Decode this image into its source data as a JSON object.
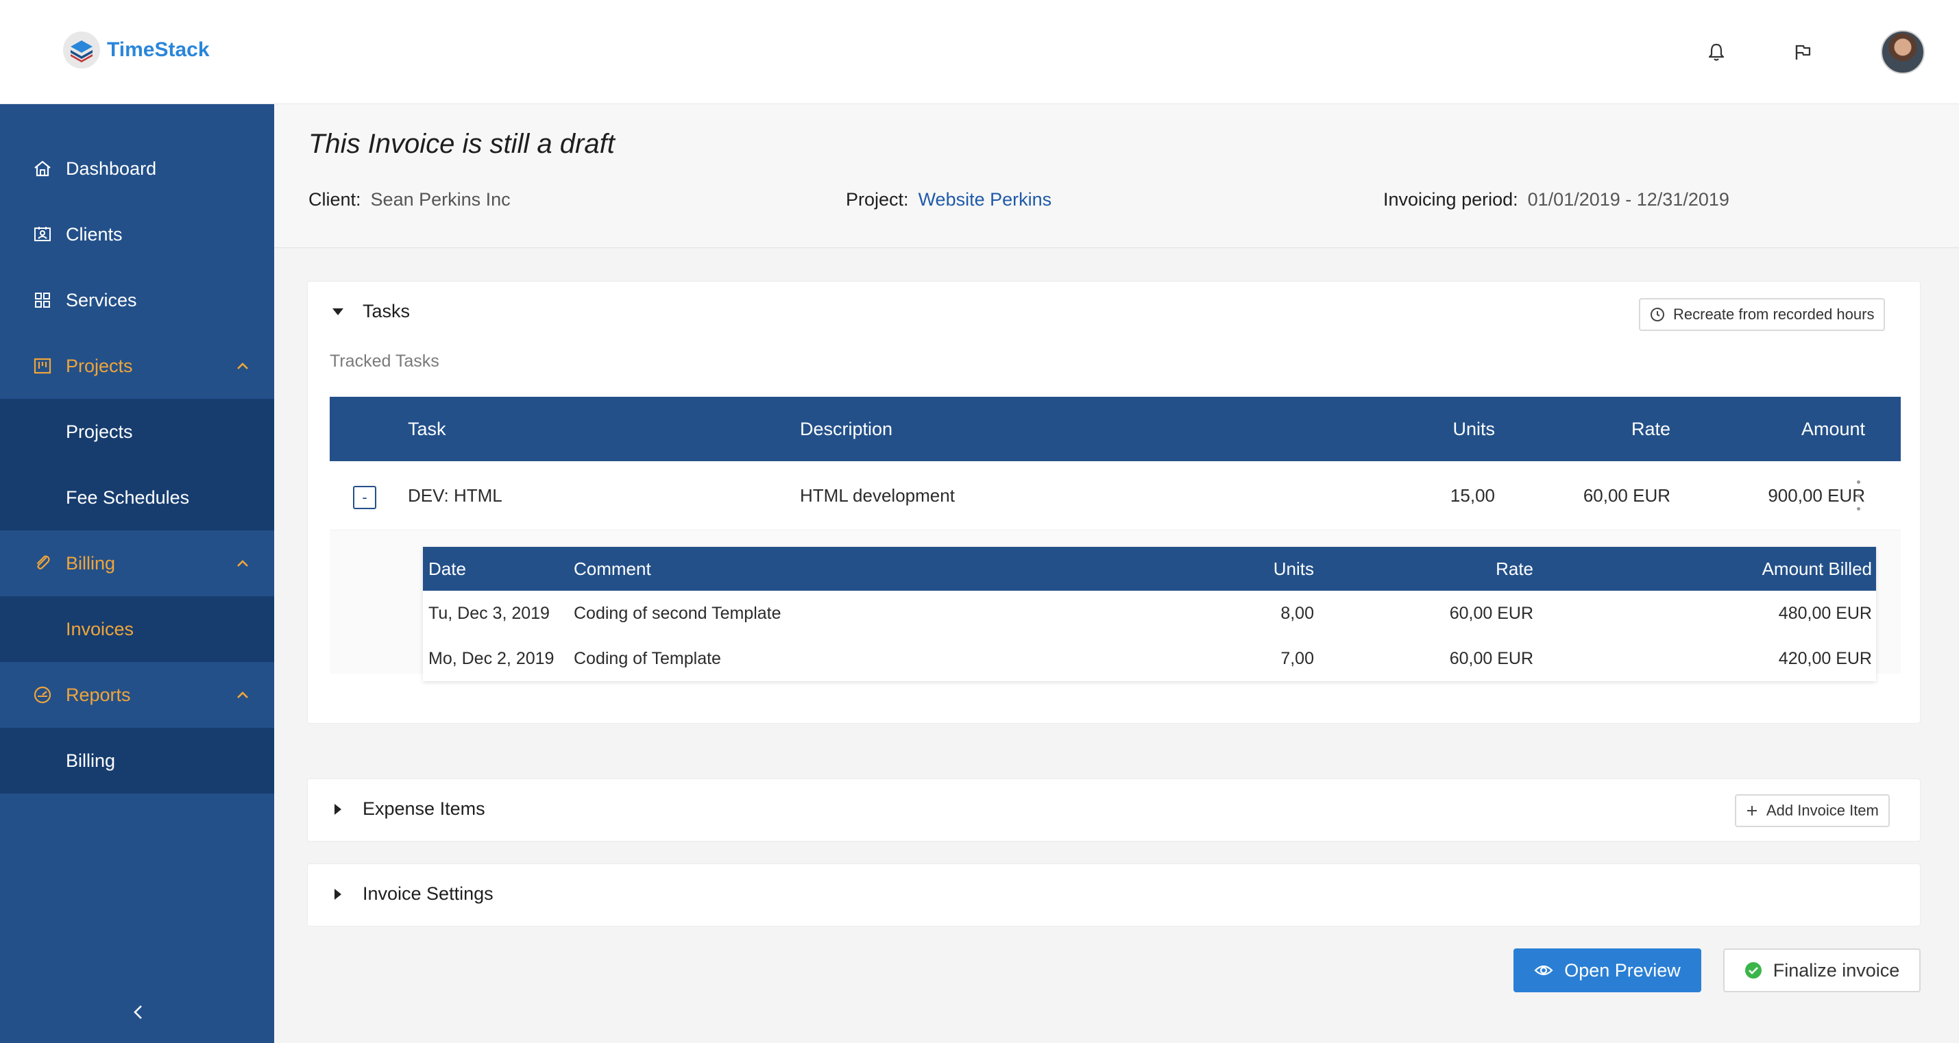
{
  "app": {
    "name": "TimeStack"
  },
  "header": {
    "notifications_icon": "bell-icon",
    "flag_icon": "flag-icon",
    "avatar_icon": "user-avatar"
  },
  "sidebar": {
    "items": [
      {
        "label": "Dashboard",
        "icon": "home-icon"
      },
      {
        "label": "Clients",
        "icon": "clients-icon"
      },
      {
        "label": "Services",
        "icon": "grid-icon"
      },
      {
        "label": "Projects",
        "icon": "projects-icon"
      },
      {
        "label": "Projects"
      },
      {
        "label": "Fee Schedules"
      },
      {
        "label": "Billing",
        "icon": "billing-icon"
      },
      {
        "label": "Invoices"
      },
      {
        "label": "Reports",
        "icon": "reports-icon"
      },
      {
        "label": "Billing"
      }
    ]
  },
  "invoice": {
    "status_title": "This Invoice is still a draft",
    "client_label": "Client",
    "client_value": "Sean Perkins Inc",
    "project_label": "Project",
    "project_value": "Website Perkins",
    "period_label": "Invoicing period",
    "period_value": "01/01/2019 - 12/31/2019"
  },
  "tasks_section": {
    "title": "Tasks",
    "recreate_button": "Recreate from recorded hours",
    "tracked_label": "Tracked Tasks",
    "columns": {
      "task": "Task",
      "description": "Description",
      "units": "Units",
      "rate": "Rate",
      "amount": "Amount"
    },
    "rows": [
      {
        "task": "DEV: HTML",
        "description": "HTML development",
        "units": "15,00",
        "rate": "60,00 EUR",
        "amount": "900,00 EUR",
        "toggle": "-"
      }
    ],
    "detail": {
      "columns": {
        "date": "Date",
        "comment": "Comment",
        "units": "Units",
        "rate": "Rate",
        "amount": "Amount Billed"
      },
      "rows": [
        {
          "date": "Tu, Dec 3, 2019",
          "comment": "Coding of second Template",
          "units": "8,00",
          "rate": "60,00 EUR",
          "amount": "480,00 EUR"
        },
        {
          "date": "Mo, Dec 2, 2019",
          "comment": "Coding of Template",
          "units": "7,00",
          "rate": "60,00 EUR",
          "amount": "420,00 EUR"
        }
      ]
    }
  },
  "expense_section": {
    "title": "Expense Items",
    "add_button": "Add Invoice Item"
  },
  "settings_section": {
    "title": "Invoice Settings"
  },
  "actions": {
    "preview": "Open Preview",
    "finalize": "Finalize invoice"
  },
  "colors": {
    "sidebar": "#235089",
    "sidebar_sub": "#173d6f",
    "accent": "#f0a53a",
    "primary": "#2a7fd4",
    "link": "#1f5aa8"
  }
}
